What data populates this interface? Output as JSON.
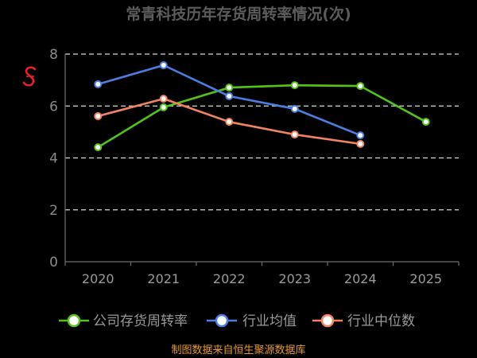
{
  "chart_data": {
    "type": "line",
    "title": "常青科技历年存货周转率情况(次)",
    "categories": [
      "2020",
      "2021",
      "2022",
      "2023",
      "2024",
      "2025"
    ],
    "series": [
      {
        "name": "公司存货周转率",
        "color": "#52c41a",
        "values": [
          4.41,
          5.95,
          6.71,
          6.8,
          6.77,
          5.39
        ]
      },
      {
        "name": "行业均值",
        "color": "#4a7fe0",
        "values": [
          6.84,
          7.57,
          6.38,
          5.89,
          4.87,
          null
        ]
      },
      {
        "name": "行业中位数",
        "color": "#f4845f",
        "values": [
          5.61,
          6.28,
          5.39,
          4.9,
          4.54,
          null
        ]
      }
    ],
    "yticks": [
      0,
      2,
      4,
      6,
      8
    ],
    "ylim": [
      0,
      8
    ],
    "grid": true,
    "legend": "bottom"
  },
  "footer": {
    "source": "制图数据来自恒生聚源数据库"
  },
  "logo": {
    "icon": "brand-s-icon",
    "color": "#e8202a"
  }
}
